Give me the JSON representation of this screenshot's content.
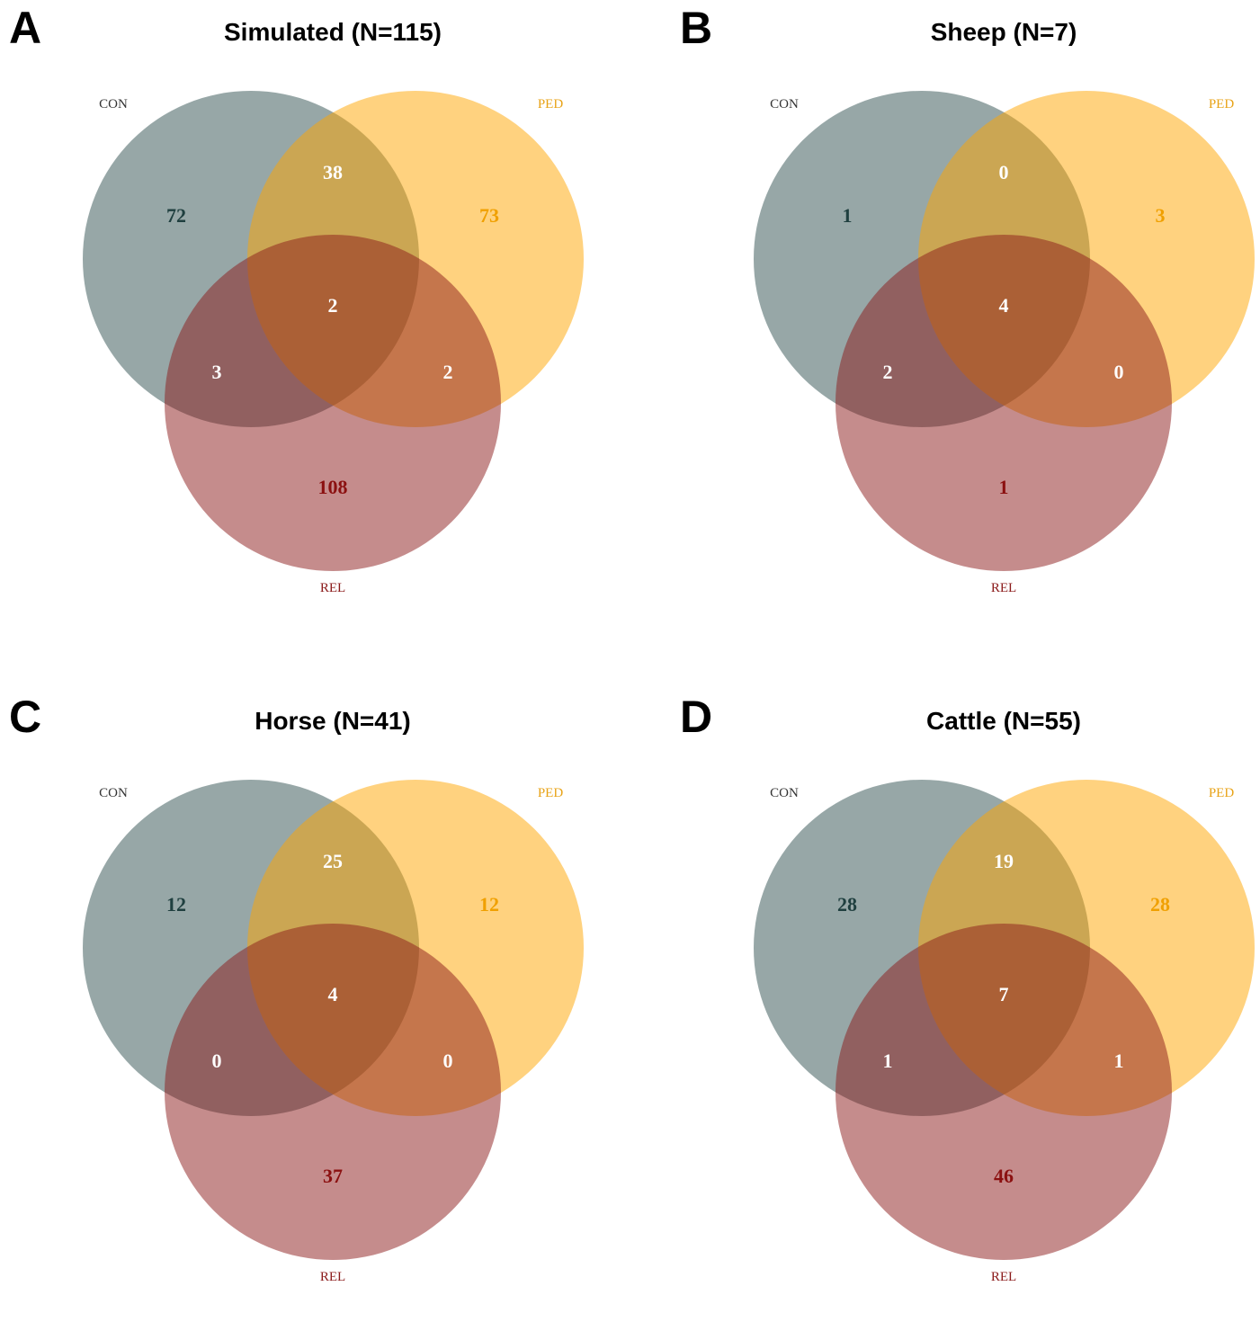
{
  "colors": {
    "con": "#2F4F4F",
    "ped": "#FFA500",
    "rel": "#8B1A1A",
    "con_label": "#333333",
    "ped_label": "#E8A317",
    "rel_label": "#8B1A1A",
    "con_count": "#1F3F3F",
    "ped_count": "#F0A000",
    "rel_count": "#8B1010",
    "inner_count": "#FFFFFF"
  },
  "sets": {
    "con": "CON",
    "ped": "PED",
    "rel": "REL"
  },
  "panels": [
    {
      "letter": "A",
      "title": "Simulated (N=115)",
      "counts": {
        "con_only": "72",
        "ped_only": "73",
        "rel_only": "108",
        "con_ped": "38",
        "con_rel": "3",
        "ped_rel": "2",
        "all": "2"
      }
    },
    {
      "letter": "B",
      "title": "Sheep (N=7)",
      "counts": {
        "con_only": "1",
        "ped_only": "3",
        "rel_only": "1",
        "con_ped": "0",
        "con_rel": "2",
        "ped_rel": "0",
        "all": "4"
      }
    },
    {
      "letter": "C",
      "title": "Horse (N=41)",
      "counts": {
        "con_only": "12",
        "ped_only": "12",
        "rel_only": "37",
        "con_ped": "25",
        "con_rel": "0",
        "ped_rel": "0",
        "all": "4"
      }
    },
    {
      "letter": "D",
      "title": "Cattle (N=55)",
      "counts": {
        "con_only": "28",
        "ped_only": "28",
        "rel_only": "46",
        "con_ped": "19",
        "con_rel": "1",
        "ped_rel": "1",
        "all": "7"
      }
    }
  ]
}
